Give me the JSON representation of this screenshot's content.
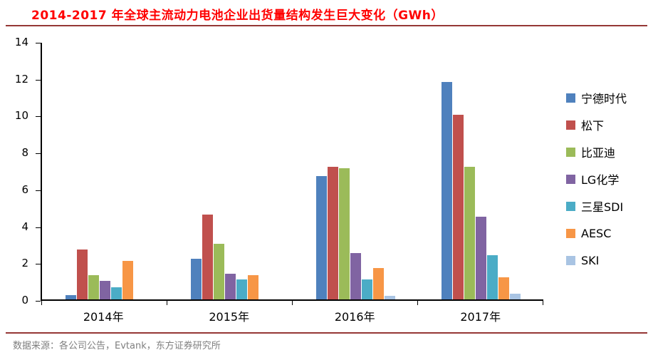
{
  "header": {
    "title": "2014-2017 年全球主流动力电池企业出货量结构发生巨大变化（GWh）"
  },
  "footer": {
    "source": "数据来源：各公司公告，Evtank，东方证券研究所"
  },
  "colors": {
    "title_text": "#FF0000",
    "divider_rule": "#953735",
    "axis": "#000000",
    "source_text": "#7F7F7F"
  },
  "chart_data": {
    "type": "bar",
    "title": "2014-2017 年全球主流动力电池企业出货量结构发生巨大变化（GWh）",
    "categories": [
      "2014年",
      "2015年",
      "2016年",
      "2017年"
    ],
    "series": [
      {
        "name": "宁德时代",
        "color": "#4F81BD",
        "values": [
          0.25,
          2.2,
          6.7,
          11.8
        ]
      },
      {
        "name": "松下",
        "color": "#C0504D",
        "values": [
          2.7,
          4.6,
          7.2,
          10.0
        ]
      },
      {
        "name": "比亚迪",
        "color": "#9BBB59",
        "values": [
          1.3,
          3.0,
          7.1,
          7.2
        ]
      },
      {
        "name": "LG化学",
        "color": "#8064A2",
        "values": [
          1.0,
          1.4,
          2.5,
          4.5
        ]
      },
      {
        "name": "三星SDI",
        "color": "#4BACC6",
        "values": [
          0.65,
          1.1,
          1.1,
          2.4
        ]
      },
      {
        "name": "AESC",
        "color": "#F79646",
        "values": [
          2.1,
          1.3,
          1.7,
          1.2
        ]
      },
      {
        "name": "SKI",
        "color": "#A9C4E3",
        "values": [
          0,
          0,
          0.2,
          0.3
        ]
      }
    ],
    "xlabel": "",
    "ylabel": "",
    "ylim": [
      0,
      14
    ],
    "ytick_step": 2,
    "grid": false,
    "legend_position": "right"
  }
}
